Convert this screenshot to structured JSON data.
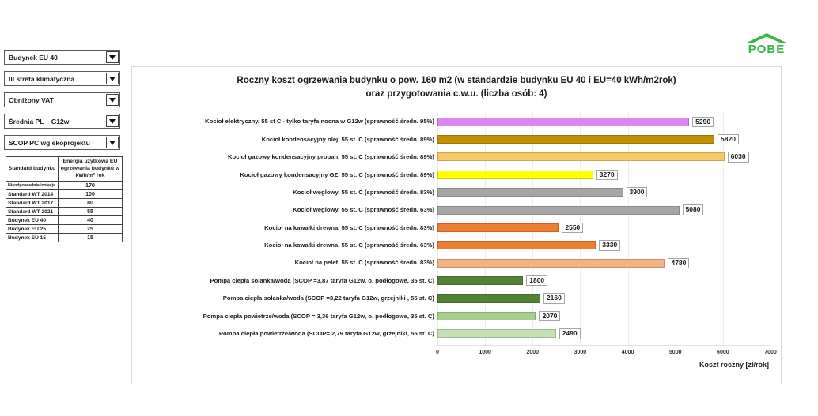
{
  "logo": {
    "text": "POBE",
    "color": "#3cb44a"
  },
  "controls": {
    "dropdowns": [
      "Budynek EU 40",
      "III strefa klimatyczna",
      "Obniżony VAT",
      "Średnia PL – G12w",
      "SCOP PC wg ekoprojektu"
    ]
  },
  "table": {
    "headers": [
      "Standard budynku",
      "Energia użytkowa EU ogrzewania budynku w kWh/m² rok"
    ],
    "rows": [
      [
        "Nieodpowiednia izolacja",
        "170"
      ],
      [
        "Standard WT 2014",
        "100"
      ],
      [
        "Standard WT 2017",
        "80"
      ],
      [
        "Standard WT 2021",
        "55"
      ],
      [
        "Budynek EU 40",
        "40"
      ],
      [
        "Budynek EU 25",
        "25"
      ],
      [
        "Budynek EU 15",
        "15"
      ]
    ]
  },
  "chart_data": {
    "type": "bar",
    "orientation": "horizontal",
    "title_line1": "Roczny koszt ogrzewania budynku o pow. 160 m2 (w standardzie budynku EU 40 i EU=40 kWh/m2rok)",
    "title_line2": "oraz przygotowania c.w.u. (liczba osób: 4)",
    "xlabel": "Koszt roczny [zł/rok]",
    "xlim": [
      0,
      7000
    ],
    "x_ticks": [
      0,
      1000,
      2000,
      3000,
      4000,
      5000,
      6000,
      7000
    ],
    "grid": "vertical, light",
    "categories": [
      "Kocioł elektryczny, 55 st C - tylko taryfa nocna w G12w (sprawność średn. 95%)",
      "Kocioł kondensacyjny olej, 55 st. C (sprawność średn. 89%)",
      "Kocioł gazowy kondensacyjny propan, 55 st. C (sprawność średn. 89%)",
      "Kocioł gazowy kondensacyjny GZ, 55 st. C (sprawność średn. 89%)",
      "Kocioł węglowy, 55 st. C (sprawność średn. 83%)",
      "Kocioł węglowy, 55 st. C (sprawność średn. 63%)",
      "Kocioł na kawałki drewna, 55 st. C (sprawność średn. 83%)",
      "Kocioł na kawałki drewna, 55 st. C (sprawność średn. 63%)",
      "Kocioł na pelet, 55 st. C (sprawność średn. 83%)",
      "Pompa ciepła solanka/woda (SCOP =3,87 taryfa G12w, o. podłogowe, 35 st. C)",
      "Pompa ciepła solanka/woda (SCOP =3,22 taryfa G12w, grzejniki , 55 st. C)",
      "Pompa ciepła powietrze/woda (SCOP = 3,36 taryfa G12w, o. podłogowe, 35 st. C)",
      "Pompa ciepła powietrze/woda (SCOP= 2,79 taryfa G12w, grzejniki, 55 st. C)"
    ],
    "values": [
      5290,
      5820,
      6030,
      3270,
      3900,
      5080,
      2550,
      3330,
      4780,
      1800,
      2160,
      2070,
      2490
    ],
    "colors": [
      "#DF86F2",
      "#BF8F00",
      "#F8C968",
      "#FFFF00",
      "#A6A6A6",
      "#A6A6A6",
      "#ED7D31",
      "#ED7D31",
      "#F4B183",
      "#538135",
      "#538135",
      "#A9D18E",
      "#C5E0B4"
    ]
  }
}
